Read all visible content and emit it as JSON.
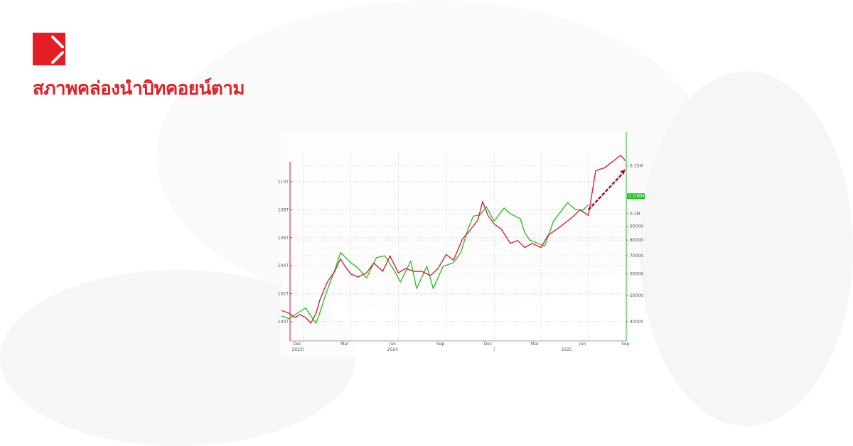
{
  "headline": "สภาพคล่องนำบิทคอยน์ตาม",
  "logo": {
    "name": "brand-logo",
    "color": "#e31e24"
  },
  "chart_data": {
    "type": "line",
    "title": "",
    "grid": true,
    "x_ticks": [
      {
        "label": "Dec",
        "date": "2023-12-20"
      },
      {
        "label": "Mar",
        "date": "2024-03-20"
      },
      {
        "label": "Jun",
        "date": "2024-06-20"
      },
      {
        "label": "Sep",
        "date": "2024-09-20"
      },
      {
        "label": "Dec",
        "date": "2024-12-20"
      },
      {
        "label": "Mar",
        "date": "2025-03-20"
      },
      {
        "label": "Jun",
        "date": "2025-06-20"
      },
      {
        "label": "Sep",
        "date": "2025-09-10"
      }
    ],
    "year_labels": [
      {
        "label": "2023",
        "date": "2023-12-20"
      },
      {
        "label": "2024",
        "date": "2024-06-20"
      },
      {
        "label": "2025",
        "date": "2025-05-20"
      }
    ],
    "left_axis": {
      "color": "#e0102e",
      "ticks": [
        "100T",
        "102T",
        "104T",
        "106T",
        "108T",
        "110T"
      ],
      "tick_values": [
        100,
        102,
        104,
        106,
        108,
        110
      ],
      "ylim": [
        98.6,
        113.5
      ],
      "unit": "T"
    },
    "right_axis": {
      "color": "#22c01a",
      "scale": "log",
      "ticks": [
        "40000",
        "50000",
        "60000",
        "70000",
        "80000",
        "90000",
        "0.1M",
        "0.15M"
      ],
      "tick_values": [
        40000,
        50000,
        60000,
        70000,
        80000,
        90000,
        100000,
        150000
      ],
      "ylim": [
        32000,
        180000
      ],
      "last_value_label": "0.108M"
    },
    "series": [
      {
        "axis": "left",
        "color": "#e0102e",
        "points": [
          [
            "2023-11-20",
            100.8
          ],
          [
            "2023-12-05",
            100.6
          ],
          [
            "2023-12-15",
            100.3
          ],
          [
            "2023-12-25",
            100.5
          ],
          [
            "2024-01-05",
            100.3
          ],
          [
            "2024-01-15",
            99.9
          ],
          [
            "2024-01-25",
            100.6
          ],
          [
            "2024-02-01",
            101.5
          ],
          [
            "2024-02-15",
            102.8
          ],
          [
            "2024-03-01",
            103.6
          ],
          [
            "2024-03-12",
            104.5
          ],
          [
            "2024-03-20",
            104.0
          ],
          [
            "2024-04-01",
            103.4
          ],
          [
            "2024-04-15",
            103.2
          ],
          [
            "2024-05-01",
            103.5
          ],
          [
            "2024-05-15",
            104.2
          ],
          [
            "2024-06-01",
            103.6
          ],
          [
            "2024-06-15",
            104.7
          ],
          [
            "2024-07-01",
            103.5
          ],
          [
            "2024-07-15",
            103.8
          ],
          [
            "2024-08-01",
            103.6
          ],
          [
            "2024-08-15",
            103.6
          ],
          [
            "2024-09-01",
            103.3
          ],
          [
            "2024-09-15",
            103.8
          ],
          [
            "2024-10-01",
            104.8
          ],
          [
            "2024-10-15",
            104.4
          ],
          [
            "2024-11-01",
            105.9
          ],
          [
            "2024-11-15",
            106.5
          ],
          [
            "2024-12-01",
            107.3
          ],
          [
            "2024-12-10",
            108.6
          ],
          [
            "2024-12-20",
            107.6
          ],
          [
            "2025-01-01",
            107.0
          ],
          [
            "2025-01-15",
            106.6
          ],
          [
            "2025-02-01",
            105.6
          ],
          [
            "2025-02-15",
            105.8
          ],
          [
            "2025-03-01",
            105.3
          ],
          [
            "2025-03-15",
            105.6
          ],
          [
            "2025-04-01",
            105.3
          ],
          [
            "2025-04-15",
            106.2
          ],
          [
            "2025-05-01",
            106.6
          ],
          [
            "2025-05-15",
            107.0
          ],
          [
            "2025-06-01",
            107.5
          ],
          [
            "2025-06-15",
            108.0
          ],
          [
            "2025-07-01",
            107.6
          ],
          [
            "2025-07-08",
            109.2
          ],
          [
            "2025-07-15",
            110.8
          ],
          [
            "2025-08-01",
            111.0
          ],
          [
            "2025-08-15",
            111.4
          ],
          [
            "2025-09-01",
            111.9
          ],
          [
            "2025-09-10",
            111.5
          ]
        ]
      },
      {
        "axis": "right",
        "color": "#22c01a",
        "points": [
          [
            "2023-11-20",
            42000
          ],
          [
            "2023-12-05",
            41000
          ],
          [
            "2023-12-20",
            43000
          ],
          [
            "2024-01-05",
            45000
          ],
          [
            "2024-01-15",
            42000
          ],
          [
            "2024-01-25",
            39500
          ],
          [
            "2024-02-01",
            43000
          ],
          [
            "2024-02-15",
            52000
          ],
          [
            "2024-03-01",
            62000
          ],
          [
            "2024-03-12",
            72000
          ],
          [
            "2024-04-01",
            66000
          ],
          [
            "2024-04-15",
            63000
          ],
          [
            "2024-05-01",
            58000
          ],
          [
            "2024-05-20",
            69000
          ],
          [
            "2024-06-05",
            70000
          ],
          [
            "2024-06-25",
            61000
          ],
          [
            "2024-07-05",
            56000
          ],
          [
            "2024-07-25",
            67000
          ],
          [
            "2024-08-05",
            53000
          ],
          [
            "2024-08-25",
            64000
          ],
          [
            "2024-09-06",
            53000
          ],
          [
            "2024-09-25",
            64000
          ],
          [
            "2024-10-15",
            66000
          ],
          [
            "2024-10-29",
            72000
          ],
          [
            "2024-11-12",
            88000
          ],
          [
            "2024-11-22",
            98000
          ],
          [
            "2024-12-05",
            99000
          ],
          [
            "2024-12-17",
            106000
          ],
          [
            "2025-01-01",
            94000
          ],
          [
            "2025-01-20",
            105000
          ],
          [
            "2025-02-01",
            100000
          ],
          [
            "2025-02-20",
            96000
          ],
          [
            "2025-03-01",
            85000
          ],
          [
            "2025-03-10",
            80000
          ],
          [
            "2025-04-08",
            76000
          ],
          [
            "2025-04-25",
            94000
          ],
          [
            "2025-05-22",
            110000
          ],
          [
            "2025-06-05",
            104000
          ],
          [
            "2025-06-20",
            103000
          ],
          [
            "2025-07-01",
            108000
          ]
        ]
      }
    ],
    "annotation": {
      "type": "dashed-arrow",
      "color": "#a8101c",
      "from": [
        "2025-07-01",
        108.0
      ],
      "to": [
        "2025-09-10",
        110.9
      ]
    }
  }
}
